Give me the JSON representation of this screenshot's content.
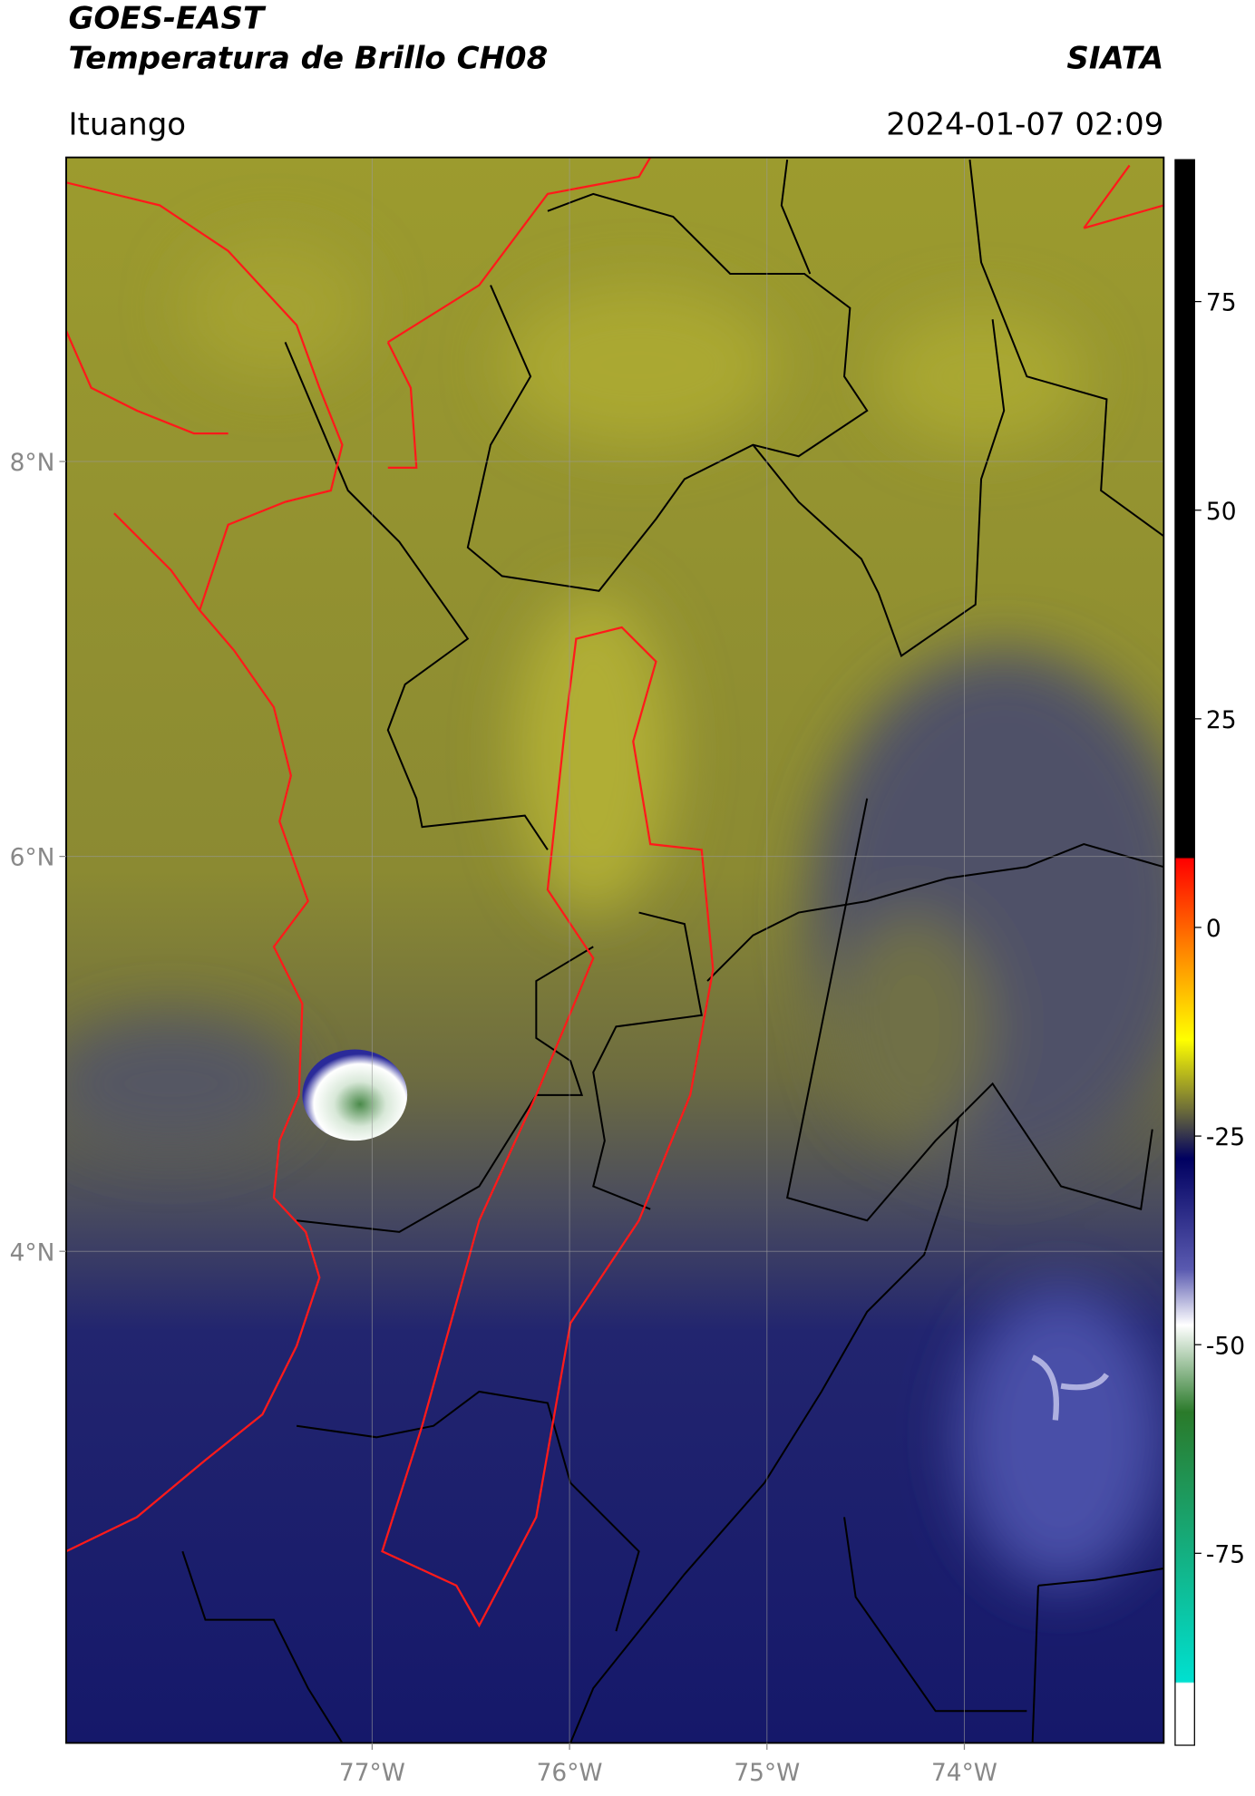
{
  "header": {
    "title": "GOES-EAST",
    "subtitle": "Temperatura de Brillo CH08",
    "institution": "SIATA",
    "location": "Ituango",
    "datetime": "2024-01-07 02:09"
  },
  "map": {
    "xlim": [
      -78.55,
      -72.99
    ],
    "ylim": [
      1.51,
      9.54
    ],
    "xticks": [
      {
        "value": -77,
        "label": "77°W"
      },
      {
        "value": -76,
        "label": "76°W"
      },
      {
        "value": -75,
        "label": "75°W"
      },
      {
        "value": -74,
        "label": "74°W"
      }
    ],
    "yticks": [
      {
        "value": 8,
        "label": "8°N"
      },
      {
        "value": 6,
        "label": "6°N"
      },
      {
        "value": 4,
        "label": "4°N"
      }
    ],
    "grid": true
  },
  "colorbar": {
    "lim": [
      -98,
      92
    ],
    "ticks": [
      75,
      50,
      25,
      0,
      -25,
      -50,
      -75
    ]
  }
}
